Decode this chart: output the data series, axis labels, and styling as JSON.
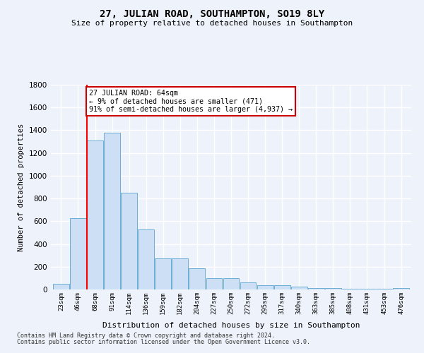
{
  "title": "27, JULIAN ROAD, SOUTHAMPTON, SO19 8LY",
  "subtitle": "Size of property relative to detached houses in Southampton",
  "xlabel": "Distribution of detached houses by size in Southampton",
  "ylabel": "Number of detached properties",
  "categories": [
    "23sqm",
    "46sqm",
    "68sqm",
    "91sqm",
    "114sqm",
    "136sqm",
    "159sqm",
    "182sqm",
    "204sqm",
    "227sqm",
    "250sqm",
    "272sqm",
    "295sqm",
    "317sqm",
    "340sqm",
    "363sqm",
    "385sqm",
    "408sqm",
    "431sqm",
    "453sqm",
    "476sqm"
  ],
  "values": [
    50,
    630,
    1310,
    1380,
    850,
    530,
    275,
    275,
    185,
    100,
    100,
    60,
    35,
    35,
    25,
    15,
    15,
    5,
    5,
    5,
    15
  ],
  "bar_color": "#ccdff5",
  "bar_edge_color": "#6aaed6",
  "background_color": "#eef2fa",
  "grid_color": "#ffffff",
  "red_line_index": 2,
  "annotation_text": "27 JULIAN ROAD: 64sqm\n← 9% of detached houses are smaller (471)\n91% of semi-detached houses are larger (4,937) →",
  "annotation_box_color": "#ffffff",
  "annotation_box_edge": "#cc0000",
  "ylim": [
    0,
    1800
  ],
  "yticks": [
    0,
    200,
    400,
    600,
    800,
    1000,
    1200,
    1400,
    1600,
    1800
  ],
  "footer_line1": "Contains HM Land Registry data © Crown copyright and database right 2024.",
  "footer_line2": "Contains public sector information licensed under the Open Government Licence v3.0."
}
